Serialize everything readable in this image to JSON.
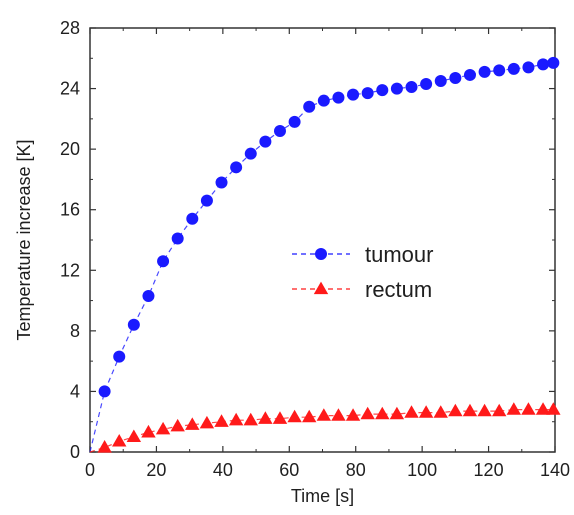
{
  "chart_data": {
    "type": "scatter",
    "title": "",
    "xlabel": "Time [s]",
    "ylabel": "Temperature increase [K]",
    "xlim": [
      0,
      140
    ],
    "ylim": [
      0,
      28
    ],
    "xticks": [
      0,
      20,
      40,
      60,
      80,
      100,
      120,
      140
    ],
    "yticks": [
      0,
      4,
      8,
      12,
      16,
      20,
      24,
      28
    ],
    "xtick_labels": [
      "0",
      "20",
      "40",
      "60",
      "80",
      "100",
      "120",
      "140"
    ],
    "ytick_labels": [
      "0",
      "4",
      "8",
      "12",
      "16",
      "20",
      "24",
      "28"
    ],
    "grid": false,
    "legend_position": "center-right",
    "series": [
      {
        "name": "tumour",
        "color": "#1a1aff",
        "marker": "circle",
        "line_style": "dashed",
        "x": [
          0,
          4.4,
          8.8,
          13.2,
          17.6,
          22,
          26.4,
          30.8,
          35.2,
          39.6,
          44,
          48.4,
          52.8,
          57.2,
          61.6,
          66,
          70.4,
          74.8,
          79.2,
          83.6,
          88,
          92.4,
          96.8,
          101.2,
          105.6,
          110,
          114.4,
          118.8,
          123.2,
          127.6,
          132,
          136.4,
          139.5
        ],
        "y": [
          0,
          4.0,
          6.3,
          8.4,
          10.3,
          12.6,
          14.1,
          15.4,
          16.6,
          17.8,
          18.8,
          19.7,
          20.5,
          21.2,
          21.8,
          22.8,
          23.2,
          23.4,
          23.6,
          23.7,
          23.9,
          24.0,
          24.1,
          24.3,
          24.5,
          24.7,
          24.9,
          25.1,
          25.2,
          25.3,
          25.4,
          25.6,
          25.7
        ]
      },
      {
        "name": "rectum",
        "color": "#ff1a1a",
        "marker": "triangle",
        "line_style": "dashed",
        "x": [
          0,
          4.4,
          8.8,
          13.2,
          17.6,
          22,
          26.4,
          30.8,
          35.2,
          39.6,
          44,
          48.4,
          52.8,
          57.2,
          61.6,
          66,
          70.4,
          74.8,
          79.2,
          83.6,
          88,
          92.4,
          96.8,
          101.2,
          105.6,
          110,
          114.4,
          118.8,
          123.2,
          127.6,
          132,
          136.4,
          139.5
        ],
        "y": [
          0,
          0.3,
          0.7,
          1.0,
          1.3,
          1.5,
          1.7,
          1.8,
          1.9,
          2.0,
          2.1,
          2.1,
          2.2,
          2.2,
          2.3,
          2.3,
          2.4,
          2.4,
          2.4,
          2.5,
          2.5,
          2.5,
          2.6,
          2.6,
          2.6,
          2.7,
          2.7,
          2.7,
          2.7,
          2.8,
          2.8,
          2.8,
          2.8
        ]
      }
    ]
  }
}
